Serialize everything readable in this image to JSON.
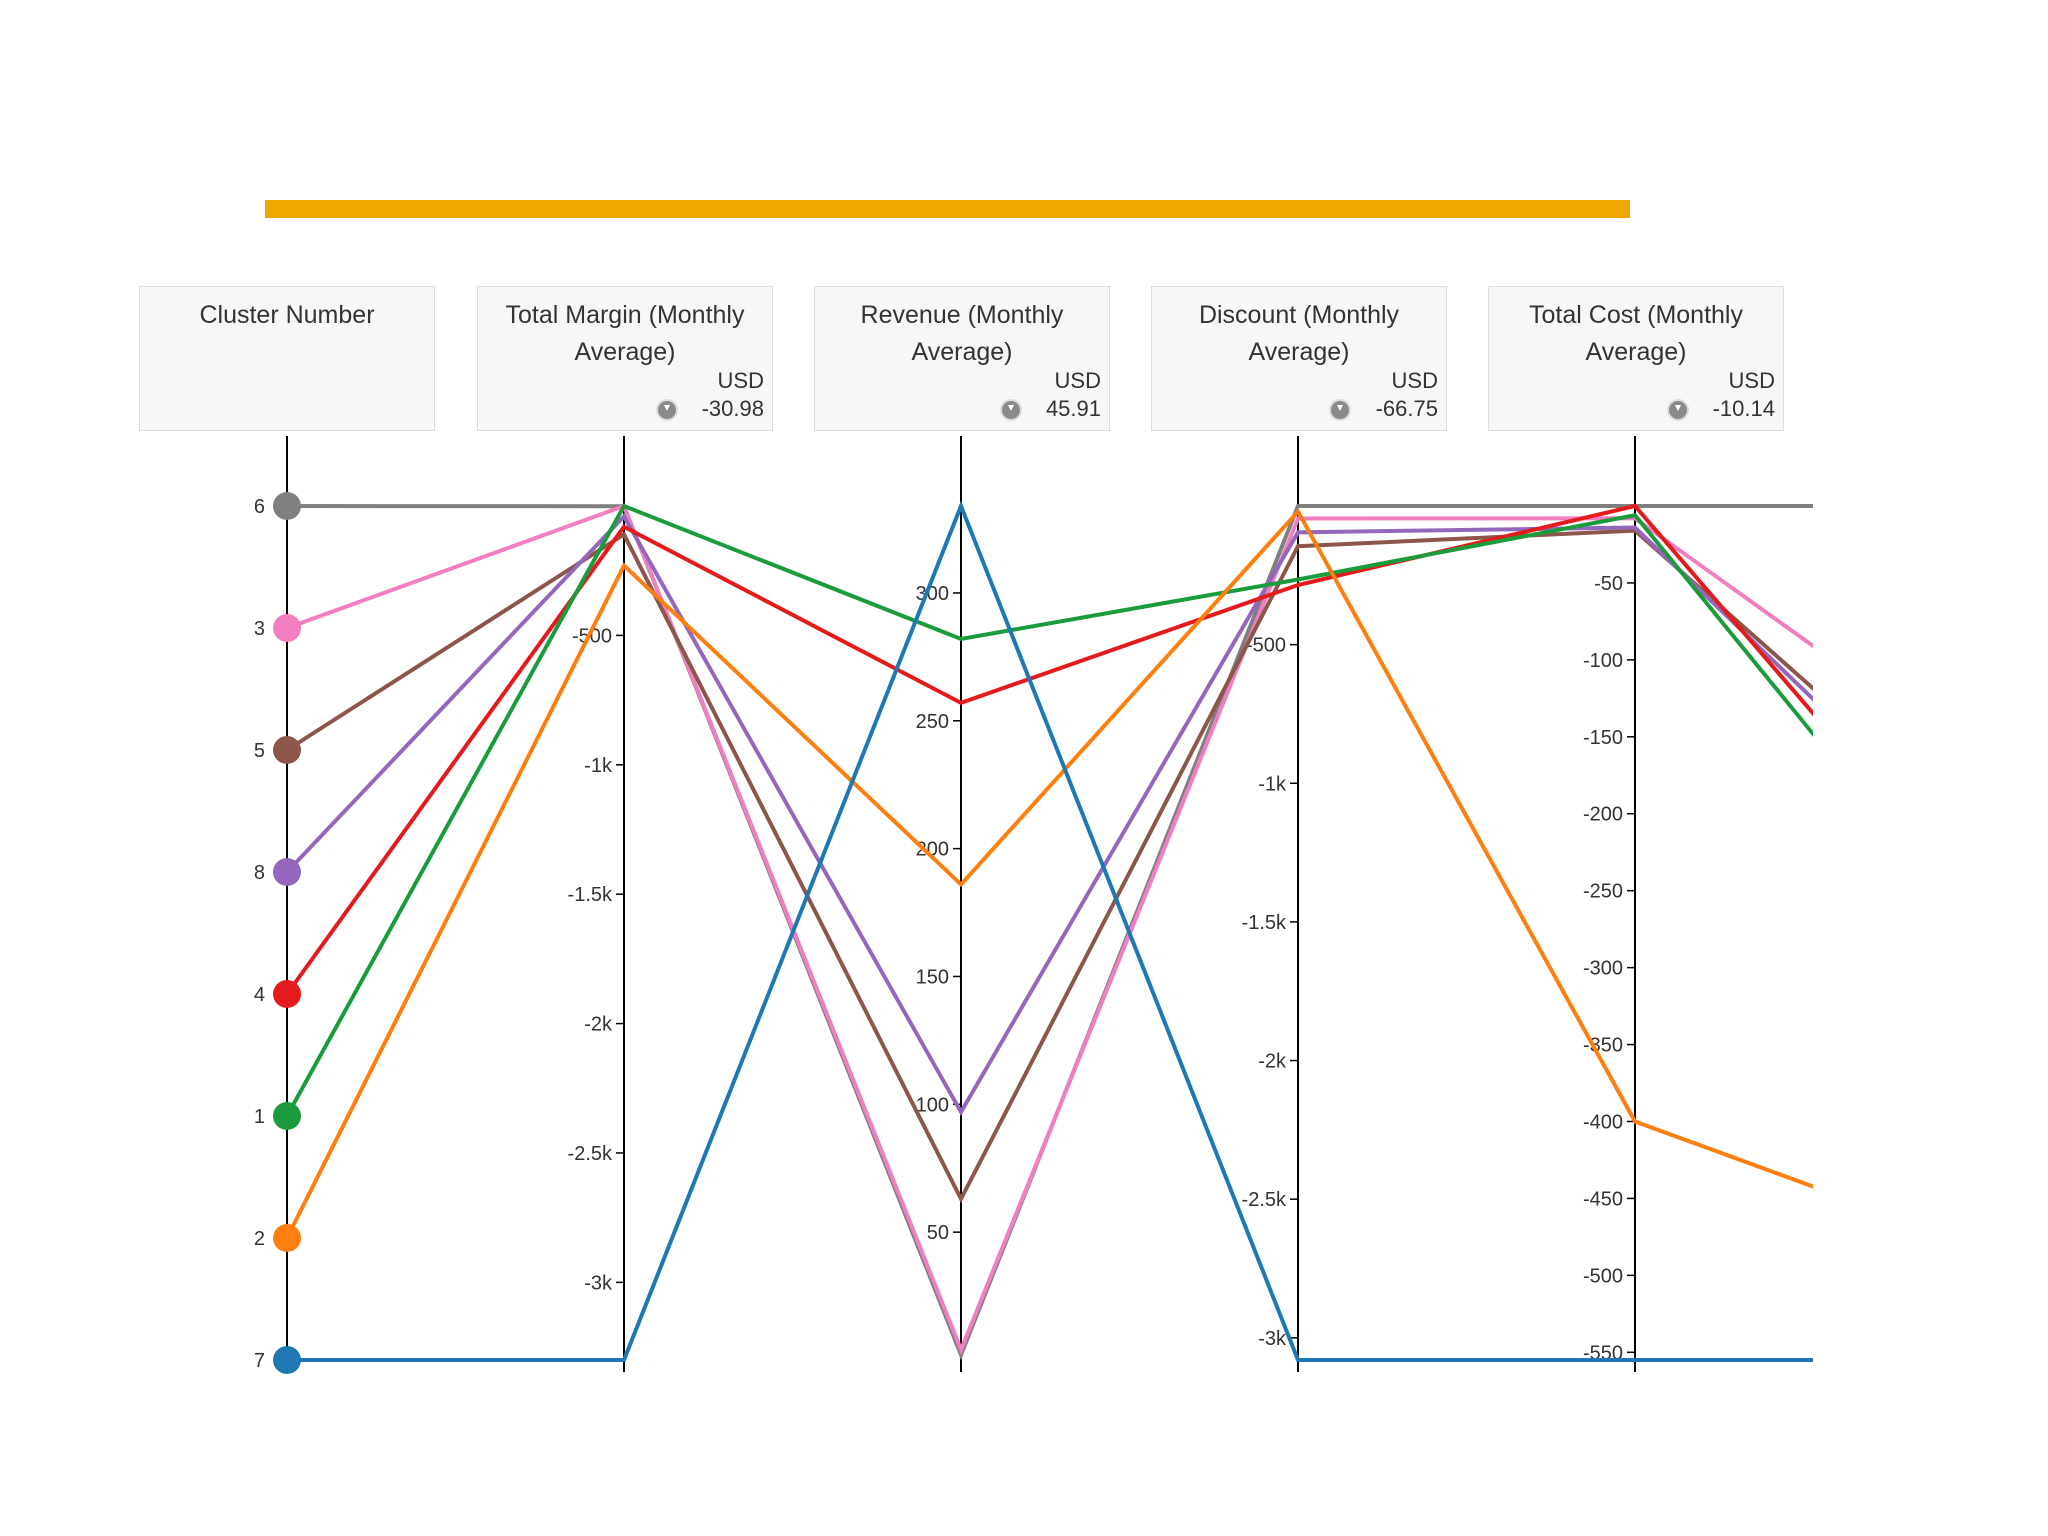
{
  "accent_color": "#f0a800",
  "chart_data": {
    "type": "parallel-coordinates",
    "axes": [
      {
        "id": "cluster",
        "title": "Cluster Number",
        "unit": "",
        "filter_value": "",
        "type": "categorical",
        "order_top_to_bottom": [
          "6",
          "3",
          "5",
          "8",
          "4",
          "1",
          "2",
          "7"
        ]
      },
      {
        "id": "margin",
        "title": "Total Margin (Monthly Average)",
        "unit": "USD",
        "filter_value": "-30.98",
        "domain": [
          -3300,
          0
        ],
        "ticks": [
          {
            "v": -500,
            "label": "-500"
          },
          {
            "v": -1000,
            "label": "-1k"
          },
          {
            "v": -1500,
            "label": "-1.5k"
          },
          {
            "v": -2000,
            "label": "-2k"
          },
          {
            "v": -2500,
            "label": "-2.5k"
          },
          {
            "v": -3000,
            "label": "-3k"
          }
        ]
      },
      {
        "id": "revenue",
        "title": "Revenue (Monthly Average)",
        "unit": "USD",
        "filter_value": "45.91",
        "domain": [
          0,
          334
        ],
        "ticks": [
          {
            "v": 300,
            "label": "300"
          },
          {
            "v": 250,
            "label": "250"
          },
          {
            "v": 200,
            "label": "200"
          },
          {
            "v": 150,
            "label": "150"
          },
          {
            "v": 100,
            "label": "100"
          },
          {
            "v": 50,
            "label": "50"
          }
        ]
      },
      {
        "id": "discount",
        "title": "Discount (Monthly Average)",
        "unit": "USD",
        "filter_value": "-66.75",
        "domain": [
          -3080,
          0
        ],
        "ticks": [
          {
            "v": -500,
            "label": "-500"
          },
          {
            "v": -1000,
            "label": "-1k"
          },
          {
            "v": -1500,
            "label": "-1.5k"
          },
          {
            "v": -2000,
            "label": "-2k"
          },
          {
            "v": -2500,
            "label": "-2.5k"
          },
          {
            "v": -3000,
            "label": "-3k"
          }
        ]
      },
      {
        "id": "cost",
        "title": "Total Cost (Monthly Average)",
        "unit": "USD",
        "filter_value": "-10.14",
        "domain": [
          -555,
          0
        ],
        "ticks": [
          {
            "v": -50,
            "label": "-50"
          },
          {
            "v": -100,
            "label": "-100"
          },
          {
            "v": -150,
            "label": "-150"
          },
          {
            "v": -200,
            "label": "-200"
          },
          {
            "v": -250,
            "label": "-250"
          },
          {
            "v": -300,
            "label": "-300"
          },
          {
            "v": -350,
            "label": "-350"
          },
          {
            "v": -400,
            "label": "-400"
          },
          {
            "v": -450,
            "label": "-450"
          },
          {
            "v": -500,
            "label": "-500"
          },
          {
            "v": -550,
            "label": "-550"
          }
        ]
      }
    ],
    "series": [
      {
        "cluster": "6",
        "color": "#7f7f7f",
        "margin": -1,
        "revenue": 2,
        "discount": 0,
        "cost": 0,
        "next": 0
      },
      {
        "cluster": "3",
        "color": "#f27ec1",
        "margin": 0,
        "revenue": 4,
        "discount": -45,
        "cost": -8,
        "next": -165
      },
      {
        "cluster": "5",
        "color": "#8c564b",
        "margin": -110,
        "revenue": 63,
        "discount": -145,
        "cost": -16,
        "next": -210
      },
      {
        "cluster": "8",
        "color": "#9467bd",
        "margin": -40,
        "revenue": 97,
        "discount": -95,
        "cost": -14,
        "next": -225
      },
      {
        "cluster": "4",
        "color": "#e41a1c",
        "margin": -80,
        "revenue": 257,
        "discount": -285,
        "cost": 0,
        "next": -255
      },
      {
        "cluster": "1",
        "color": "#1a9b3c",
        "margin": 0,
        "revenue": 282,
        "discount": -265,
        "cost": -6,
        "next": -275
      },
      {
        "cluster": "2",
        "color": "#ff7f0e",
        "margin": -230,
        "revenue": 186,
        "discount": -20,
        "cost": -400,
        "next": -480
      },
      {
        "cluster": "7",
        "color": "#1f77b4",
        "margin": -3300,
        "revenue": 334,
        "discount": -3080,
        "cost": -555,
        "next": -555
      }
    ]
  }
}
